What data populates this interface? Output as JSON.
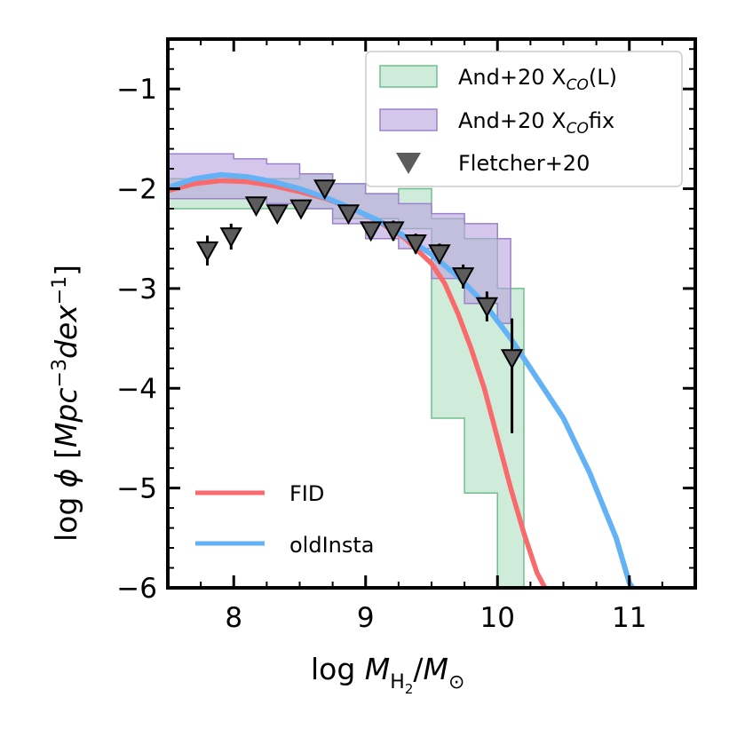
{
  "chart_data": {
    "type": "line",
    "title": "",
    "xlabel": "log M_H2/M_⊙",
    "ylabel": "log φ [Mpc^-3 dex^-1]",
    "xlim": [
      7.5,
      11.5
    ],
    "ylim": [
      -6,
      -0.5
    ],
    "xticks": [
      8,
      9,
      10,
      11
    ],
    "yticks": [
      -6,
      -5,
      -4,
      -3,
      -2,
      -1
    ],
    "xtick_labels": [
      "8",
      "9",
      "10",
      "11"
    ],
    "ytick_labels": [
      "−6",
      "−5",
      "−4",
      "−3",
      "−2",
      "−1"
    ],
    "grid": false,
    "legend_upper": "top-right",
    "legend_lower": "bottom-left",
    "bands": [
      {
        "name": "And+20 X_CO(L)",
        "label_main": "And+20 X",
        "label_sub": "CO",
        "label_tail": "(L)",
        "fill": "#9fd8b6",
        "edge": "#6fbf8e",
        "opacity": 0.5,
        "edges_x": [
          7.3,
          7.5,
          7.75,
          8.0,
          8.25,
          8.5,
          8.75,
          9.0,
          9.25,
          9.5,
          9.75,
          10.0,
          10.2
        ],
        "lower": [
          -2.2,
          -2.2,
          -2.2,
          -2.2,
          -2.2,
          -2.2,
          -2.3,
          -2.3,
          -2.4,
          -4.3,
          -5.05,
          -6.4
        ],
        "upper": [
          -1.9,
          -1.9,
          -1.9,
          -1.9,
          -1.9,
          -1.85,
          -1.95,
          -2.05,
          -2.0,
          -2.3,
          -2.5,
          -3.0
        ]
      },
      {
        "name": "And+20 X_CO fix",
        "label_main": "And+20 X",
        "label_sub": "CO",
        "label_tail": "fix",
        "fill": "#b9a2e0",
        "edge": "#9a82cc",
        "opacity": 0.6,
        "edges_x": [
          7.3,
          7.5,
          7.75,
          8.0,
          8.25,
          8.5,
          8.75,
          9.0,
          9.25,
          9.5,
          9.75,
          10.0,
          10.1
        ],
        "lower": [
          -2.1,
          -2.1,
          -2.1,
          -2.1,
          -2.15,
          -2.2,
          -2.35,
          -2.5,
          -2.6,
          -2.9,
          -3.15,
          -3.35
        ],
        "upper": [
          -1.65,
          -1.65,
          -1.65,
          -1.7,
          -1.75,
          -1.85,
          -1.95,
          -2.05,
          -2.15,
          -2.25,
          -2.35,
          -2.5
        ]
      }
    ],
    "series": [
      {
        "name": "FID",
        "color": "#f96a6c",
        "x": [
          7.3,
          7.5,
          7.7,
          7.9,
          8.1,
          8.3,
          8.5,
          8.7,
          8.9,
          9.1,
          9.3,
          9.5,
          9.6,
          9.7,
          9.8,
          9.9,
          10.0,
          10.1,
          10.2,
          10.3,
          10.38
        ],
        "y": [
          -2.1,
          -2.02,
          -1.95,
          -1.92,
          -1.93,
          -1.97,
          -2.03,
          -2.1,
          -2.2,
          -2.33,
          -2.5,
          -2.75,
          -2.95,
          -3.25,
          -3.6,
          -4.0,
          -4.5,
          -5.0,
          -5.45,
          -5.85,
          -6.05
        ]
      },
      {
        "name": "oldInsta",
        "color": "#63b2f6",
        "x": [
          7.3,
          7.5,
          7.7,
          7.9,
          8.1,
          8.3,
          8.5,
          8.7,
          8.9,
          9.1,
          9.3,
          9.5,
          9.7,
          9.9,
          10.1,
          10.3,
          10.5,
          10.7,
          10.9,
          11.0,
          11.05
        ],
        "y": [
          -2.05,
          -1.99,
          -1.9,
          -1.86,
          -1.88,
          -1.93,
          -2.0,
          -2.09,
          -2.2,
          -2.32,
          -2.48,
          -2.66,
          -2.88,
          -3.15,
          -3.5,
          -3.9,
          -4.3,
          -4.85,
          -5.5,
          -5.95,
          -6.05
        ]
      }
    ],
    "points": {
      "name": "Fletcher+20",
      "color": "#5c5c5c",
      "x": [
        7.8,
        7.98,
        8.17,
        8.33,
        8.51,
        8.69,
        8.87,
        9.04,
        9.21,
        9.38,
        9.56,
        9.74,
        9.92,
        10.11
      ],
      "y": [
        -2.62,
        -2.48,
        -2.17,
        -2.25,
        -2.2,
        -2.0,
        -2.25,
        -2.42,
        -2.42,
        -2.55,
        -2.65,
        -2.88,
        -3.18,
        -3.7
      ],
      "err_lo": [
        0.15,
        0.13,
        0.08,
        0.08,
        0.08,
        0.08,
        0.08,
        0.08,
        0.1,
        0.1,
        0.1,
        0.12,
        0.15,
        0.75
      ],
      "err_hi": [
        0.15,
        0.13,
        0.08,
        0.08,
        0.08,
        0.08,
        0.08,
        0.08,
        0.1,
        0.1,
        0.1,
        0.12,
        0.15,
        0.4
      ]
    },
    "legend": {
      "points_label": "Fletcher+20"
    }
  }
}
